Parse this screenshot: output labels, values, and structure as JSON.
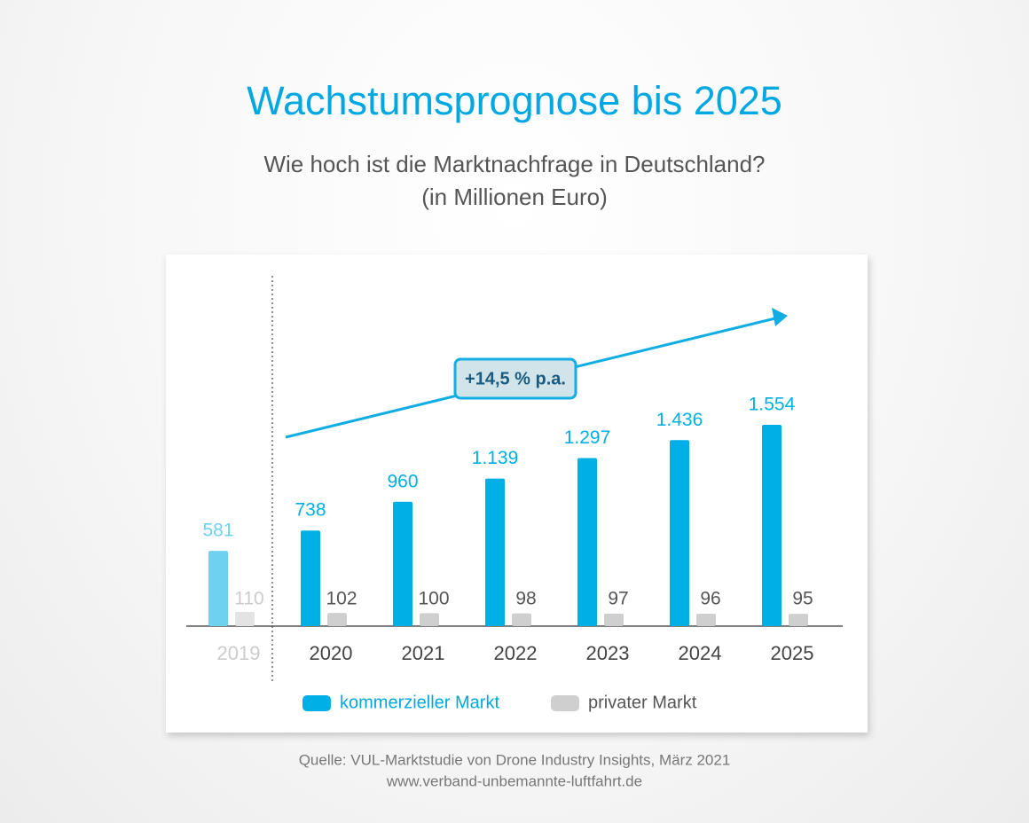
{
  "chart_data": {
    "type": "bar",
    "title": "Wachstumsprognose bis 2025",
    "subtitle": [
      "Wie hoch ist die Marktnachfrage in Deutschland?",
      "(in Millionen Euro)"
    ],
    "categories": [
      "2019",
      "2020",
      "2021",
      "2022",
      "2023",
      "2024",
      "2025"
    ],
    "series": [
      {
        "name": "kommerzieller Markt",
        "color": "#00afe6",
        "colors": [
          "#6fd1f0",
          "#00afe6",
          "#00afe6",
          "#00afe6",
          "#00afe6",
          "#00afe6",
          "#00afe6"
        ],
        "values": [
          581,
          738,
          960,
          1139,
          1297,
          1436,
          1554
        ],
        "value_labels": [
          "581",
          "738",
          "960",
          "1.139",
          "1.297",
          "1.436",
          "1.554"
        ]
      },
      {
        "name": "privater Markt",
        "color": "#cfcfcf",
        "colors": [
          "#e3e3e3",
          "#cfcfcf",
          "#cfcfcf",
          "#cfcfcf",
          "#cfcfcf",
          "#cfcfcf",
          "#cfcfcf"
        ],
        "values": [
          110,
          102,
          100,
          98,
          97,
          96,
          95
        ]
      }
    ],
    "annotation": "+14,5 % p.a.",
    "source": [
      "Quelle:  VUL-Marktstudie von Drone Industry Insights, März 2021",
      "www.verband-unbemannte-luftfahrt.de"
    ]
  }
}
